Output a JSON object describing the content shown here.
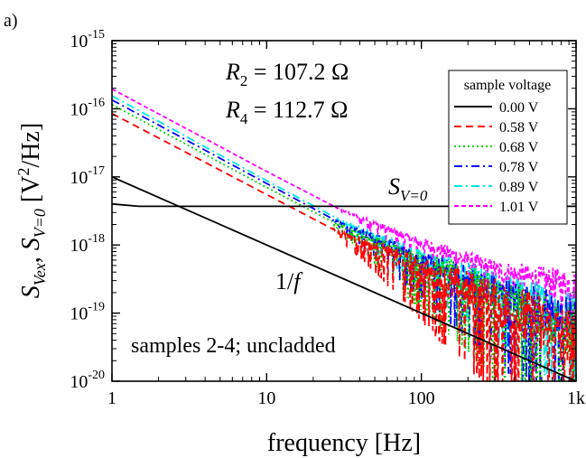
{
  "panel_label": "a)",
  "chart_data": {
    "type": "line",
    "title": "",
    "xlabel": "frequency [Hz]",
    "ylabel": {
      "main": "S",
      "sub1": "Vex",
      "sep": ", ",
      "main2": "S",
      "sub2": "V=0",
      "unit_open": " [V",
      "unit_sup": "2",
      "unit_close": "/Hz]"
    },
    "xscale": "log",
    "yscale": "log",
    "xlim": [
      1,
      1000
    ],
    "ylim": [
      1e-20,
      1e-15
    ],
    "x_ticks": [
      {
        "value": 1,
        "label": "1"
      },
      {
        "value": 10,
        "label": "10"
      },
      {
        "value": 100,
        "label": "100"
      },
      {
        "value": 1000,
        "label": "1k"
      }
    ],
    "y_ticks": [
      {
        "value": 1e-20,
        "mant": "10",
        "exp": "-20"
      },
      {
        "value": 1e-19,
        "mant": "10",
        "exp": "-19"
      },
      {
        "value": 1e-18,
        "mant": "10",
        "exp": "-18"
      },
      {
        "value": 1e-17,
        "mant": "10",
        "exp": "-17"
      },
      {
        "value": 1e-16,
        "mant": "10",
        "exp": "-16"
      },
      {
        "value": 1e-15,
        "mant": "10",
        "exp": "-15"
      }
    ],
    "legend": {
      "title": "sample voltage",
      "placement": "top-right"
    },
    "series": [
      {
        "name": "0.00 V",
        "color": "#000000",
        "dash": "solid",
        "x": [
          1,
          1.5,
          2,
          1000
        ],
        "y": [
          4e-18,
          3.7e-18,
          3.7e-18,
          3.7e-18
        ]
      },
      {
        "name": "0.58 V",
        "color": "#ff0000",
        "dash": "dash",
        "x": [
          1,
          10,
          30,
          60,
          100,
          300,
          600,
          1000
        ],
        "y": [
          8.5e-17,
          5.5e-18,
          1.5e-18,
          7.5e-19,
          4e-19,
          1.3e-19,
          6e-20,
          3e-20
        ],
        "noise": 1.0
      },
      {
        "name": "0.68 V",
        "color": "#00cc00",
        "dash": "dot",
        "x": [
          1,
          10,
          30,
          60,
          100,
          300,
          600,
          1000
        ],
        "y": [
          1.15e-16,
          7e-18,
          1.9e-18,
          9e-19,
          5e-19,
          1.6e-19,
          7e-20,
          4e-20
        ],
        "noise": 0.9
      },
      {
        "name": "0.78 V",
        "color": "#0000ff",
        "dash": "dashdot",
        "x": [
          1,
          10,
          30,
          60,
          100,
          300,
          600,
          1000
        ],
        "y": [
          1.35e-16,
          8e-18,
          2.1e-18,
          1e-18,
          5.5e-19,
          1.9e-19,
          1e-19,
          6e-20
        ],
        "noise": 0.75
      },
      {
        "name": "0.89 V",
        "color": "#00e5e5",
        "dash": "dashdot",
        "x": [
          1,
          10,
          30,
          60,
          100,
          300,
          600,
          1000
        ],
        "y": [
          1.55e-16,
          8.8e-18,
          2.3e-18,
          1.1e-18,
          6.5e-19,
          2.4e-19,
          1.4e-19,
          9e-20
        ],
        "noise": 0.6
      },
      {
        "name": "1.01 V",
        "color": "#ff00ff",
        "dash": "shortdash",
        "x": [
          1,
          10,
          30,
          60,
          100,
          300,
          600,
          1000
        ],
        "y": [
          1.95e-16,
          1.2e-17,
          3.3e-18,
          1.7e-18,
          1.05e-18,
          4.2e-19,
          3e-19,
          2.5e-19
        ],
        "noise": 0.4
      }
    ],
    "reference_line": {
      "name": "1/f",
      "color": "#000000",
      "x": [
        1,
        1000
      ],
      "y": [
        1e-17,
        1e-20
      ]
    },
    "annotations": [
      {
        "id": "r2",
        "italic": "R",
        "sub": "2",
        "rest": " = 107.2 Ω"
      },
      {
        "id": "r4",
        "italic": "R",
        "sub": "4",
        "rest": " = 112.7 Ω"
      },
      {
        "id": "sv0",
        "italic": "S",
        "sub": "V=0",
        "rest": ""
      },
      {
        "id": "oneoverf",
        "text_pre": "1/",
        "italic": "f"
      },
      {
        "id": "samples",
        "text": "samples 2-4; uncladded"
      }
    ]
  }
}
